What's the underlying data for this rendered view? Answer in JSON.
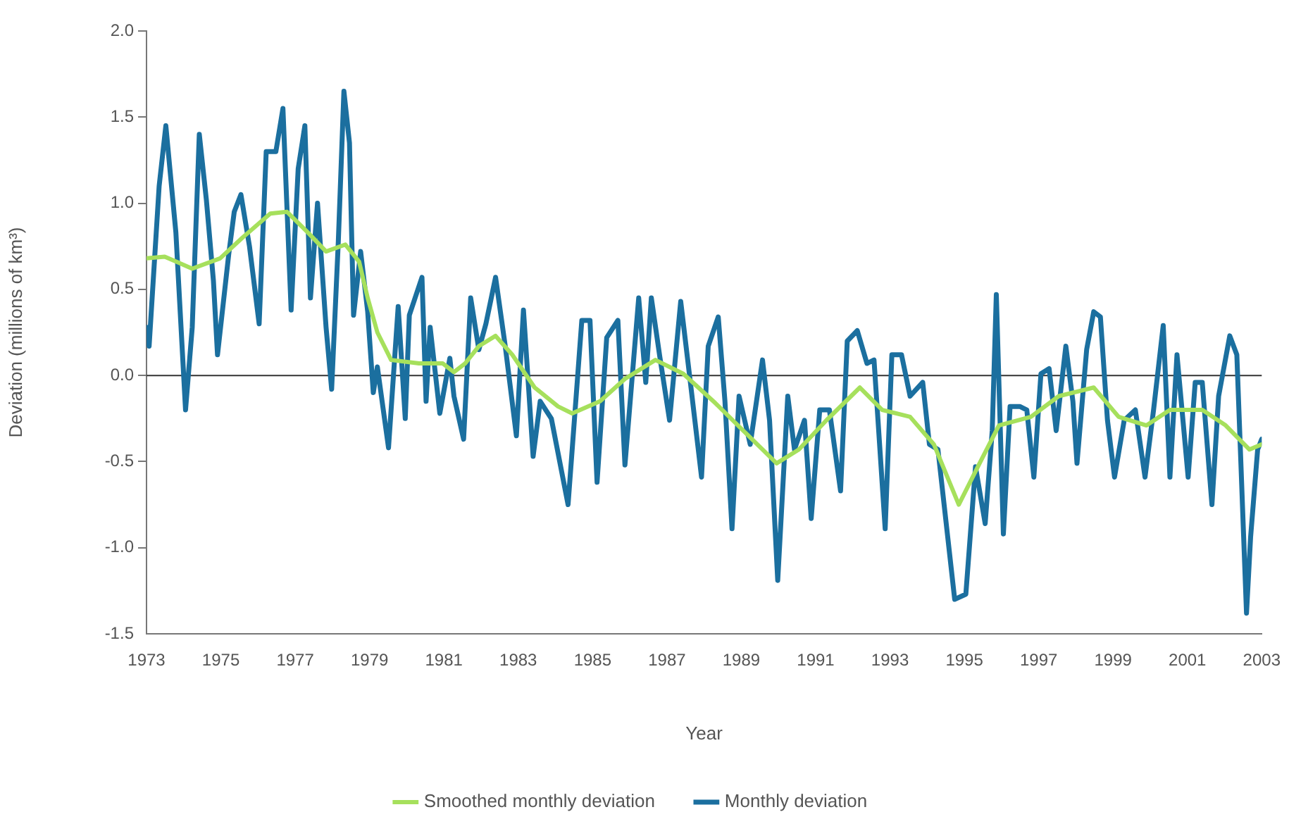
{
  "chart_data": {
    "type": "line",
    "xlabel": "Year",
    "ylabel": "Deviation (millions of km³)",
    "xlim": [
      1973,
      2003
    ],
    "xticks": [
      1973,
      1975,
      1977,
      1979,
      1981,
      1983,
      1985,
      1987,
      1989,
      1991,
      1993,
      1995,
      1997,
      1999,
      2001,
      2003
    ],
    "ylim": [
      -1.5,
      2.0
    ],
    "yticks": [
      {
        "value": -1.5,
        "label": "-1.5"
      },
      {
        "value": -1,
        "label": "-1.0"
      },
      {
        "value": -0.5,
        "label": "-0.5"
      },
      {
        "value": 0,
        "label": "0.0"
      },
      {
        "value": 0.5,
        "label": "0.5"
      },
      {
        "value": 1,
        "label": "1.0"
      },
      {
        "value": 1.5,
        "label": "1.5"
      },
      {
        "value": 2,
        "label": "2.0"
      }
    ],
    "grid": false,
    "legend": "bottom",
    "marker": "none",
    "line_style": "solid",
    "ref_lines": [
      {
        "axis": "y",
        "value": 0,
        "color": "#333333"
      }
    ],
    "series": [
      {
        "name": "Smoothed monthly deviation",
        "color": "#a6e05c",
        "x": [
          1973.0,
          1973.49,
          1974.23,
          1974.98,
          1975.58,
          1976.33,
          1976.78,
          1977.34,
          1977.83,
          1978.35,
          1978.72,
          1978.95,
          1979.21,
          1979.58,
          1980.33,
          1980.97,
          1981.27,
          1981.57,
          1981.94,
          1982.39,
          1982.84,
          1983.44,
          1984.07,
          1984.45,
          1985.2,
          1985.87,
          1986.69,
          1987.44,
          1988.3,
          1989.05,
          1989.95,
          1990.55,
          1991.29,
          1992.19,
          1992.79,
          1993.54,
          1994.18,
          1994.85,
          1995.41,
          1995.93,
          1996.79,
          1997.54,
          1998.48,
          1999.15,
          1999.9,
          2000.53,
          2001.4,
          2002.03,
          2002.67,
          2003.0
        ],
        "values": [
          0.68,
          0.69,
          0.62,
          0.68,
          0.8,
          0.94,
          0.95,
          0.83,
          0.72,
          0.76,
          0.66,
          0.45,
          0.25,
          0.09,
          0.07,
          0.07,
          0.02,
          0.07,
          0.17,
          0.23,
          0.12,
          -0.07,
          -0.18,
          -0.22,
          -0.15,
          -0.02,
          0.09,
          0.01,
          -0.16,
          -0.32,
          -0.51,
          -0.43,
          -0.26,
          -0.07,
          -0.2,
          -0.24,
          -0.4,
          -0.75,
          -0.51,
          -0.29,
          -0.24,
          -0.12,
          -0.07,
          -0.24,
          -0.29,
          -0.2,
          -0.2,
          -0.29,
          -0.43,
          -0.4
        ]
      },
      {
        "name": "Monthly deviation",
        "color": "#1b6f9f",
        "x": [
          1973.0,
          1973.07,
          1973.34,
          1973.52,
          1973.79,
          1974.05,
          1974.23,
          1974.42,
          1974.61,
          1974.8,
          1974.91,
          1975.21,
          1975.36,
          1975.54,
          1975.77,
          1976.03,
          1976.22,
          1976.48,
          1976.67,
          1976.89,
          1977.08,
          1977.26,
          1977.41,
          1977.6,
          1977.83,
          1977.98,
          1978.16,
          1978.31,
          1978.46,
          1978.57,
          1978.76,
          1978.95,
          1979.1,
          1979.21,
          1979.51,
          1979.77,
          1979.96,
          1980.07,
          1980.41,
          1980.52,
          1980.63,
          1980.89,
          1981.16,
          1981.27,
          1981.53,
          1981.72,
          1981.94,
          1982.13,
          1982.39,
          1982.65,
          1982.95,
          1983.14,
          1983.4,
          1983.59,
          1983.89,
          1984.34,
          1984.71,
          1984.93,
          1985.12,
          1985.38,
          1985.68,
          1985.87,
          1986.24,
          1986.43,
          1986.58,
          1986.8,
          1987.07,
          1987.37,
          1987.63,
          1987.93,
          1988.11,
          1988.38,
          1988.56,
          1988.75,
          1988.94,
          1989.24,
          1989.57,
          1989.76,
          1989.98,
          1990.25,
          1990.43,
          1990.7,
          1990.88,
          1991.11,
          1991.37,
          1991.67,
          1991.85,
          1992.12,
          1992.38,
          1992.57,
          1992.87,
          1993.05,
          1993.31,
          1993.54,
          1993.88,
          1994.06,
          1994.29,
          1994.74,
          1995.04,
          1995.3,
          1995.56,
          1995.75,
          1995.86,
          1996.05,
          1996.23,
          1996.49,
          1996.68,
          1996.87,
          1997.06,
          1997.28,
          1997.47,
          1997.73,
          1997.92,
          1998.03,
          1998.29,
          1998.48,
          1998.66,
          1998.85,
          1999.04,
          1999.3,
          1999.6,
          1999.86,
          2000.09,
          2000.35,
          2000.53,
          2000.72,
          2001.02,
          2001.21,
          2001.4,
          2001.66,
          2001.84,
          2002.14,
          2002.33,
          2002.59,
          2002.7,
          2002.89,
          2003.0
        ],
        "values": [
          0.28,
          0.17,
          1.1,
          1.45,
          0.83,
          -0.2,
          0.28,
          1.4,
          1.02,
          0.55,
          0.12,
          0.7,
          0.95,
          1.05,
          0.75,
          0.3,
          1.3,
          1.3,
          1.55,
          0.38,
          1.2,
          1.45,
          0.45,
          1.0,
          0.28,
          -0.08,
          0.78,
          1.65,
          1.35,
          0.35,
          0.72,
          0.37,
          -0.1,
          0.05,
          -0.42,
          0.4,
          -0.25,
          0.35,
          0.57,
          -0.15,
          0.28,
          -0.22,
          0.1,
          -0.12,
          -0.37,
          0.45,
          0.15,
          0.3,
          0.57,
          0.17,
          -0.35,
          0.38,
          -0.47,
          -0.15,
          -0.25,
          -0.75,
          0.32,
          0.32,
          -0.62,
          0.22,
          0.32,
          -0.52,
          0.45,
          -0.04,
          0.45,
          0.12,
          -0.26,
          0.43,
          -0.04,
          -0.59,
          0.17,
          0.34,
          -0.15,
          -0.89,
          -0.12,
          -0.4,
          0.09,
          -0.26,
          -1.19,
          -0.12,
          -0.43,
          -0.26,
          -0.83,
          -0.2,
          -0.2,
          -0.67,
          0.2,
          0.26,
          0.07,
          0.09,
          -0.89,
          0.12,
          0.12,
          -0.12,
          -0.04,
          -0.4,
          -0.43,
          -1.3,
          -1.27,
          -0.53,
          -0.86,
          -0.32,
          0.47,
          -0.92,
          -0.18,
          -0.18,
          -0.2,
          -0.59,
          0.01,
          0.04,
          -0.32,
          0.17,
          -0.15,
          -0.51,
          0.15,
          0.37,
          0.34,
          -0.26,
          -0.59,
          -0.26,
          -0.2,
          -0.59,
          -0.2,
          0.29,
          -0.59,
          0.12,
          -0.59,
          -0.04,
          -0.04,
          -0.75,
          -0.12,
          0.23,
          0.12,
          -1.38,
          -0.94,
          -0.43,
          -0.37
        ]
      }
    ]
  }
}
